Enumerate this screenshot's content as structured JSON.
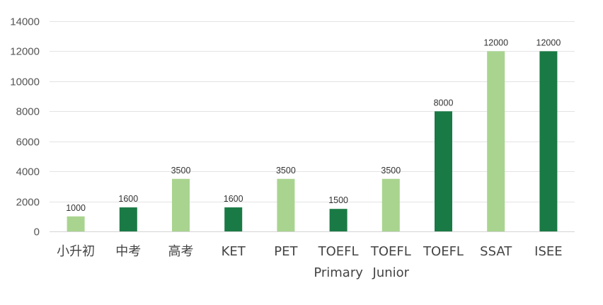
{
  "chart_data": {
    "type": "bar",
    "title": "",
    "xlabel": "",
    "ylabel": "",
    "ylim": [
      0,
      14000
    ],
    "yticks": [
      0,
      2000,
      4000,
      6000,
      8000,
      10000,
      12000,
      14000
    ],
    "grid": true,
    "legend": "none",
    "categories": [
      [
        "小升初"
      ],
      [
        "中考"
      ],
      [
        "高考"
      ],
      [
        "KET"
      ],
      [
        "PET"
      ],
      [
        "TOEFL",
        "Primary"
      ],
      [
        "TOEFL",
        "Junior"
      ],
      [
        "TOEFL"
      ],
      [
        "SSAT"
      ],
      [
        "ISEE"
      ]
    ],
    "values": [
      1000,
      1600,
      3500,
      1600,
      3500,
      1500,
      3500,
      8000,
      12000,
      12000
    ],
    "bar_colors": [
      "#a9d48f",
      "#1a7a45",
      "#a9d48f",
      "#1a7a45",
      "#a9d48f",
      "#1a7a45",
      "#a9d48f",
      "#1a7a45",
      "#a9d48f",
      "#1a7a45"
    ],
    "data_labels": [
      "1000",
      "1600",
      "3500",
      "1600",
      "3500",
      "1500",
      "3500",
      "8000",
      "12000",
      "12000"
    ]
  }
}
